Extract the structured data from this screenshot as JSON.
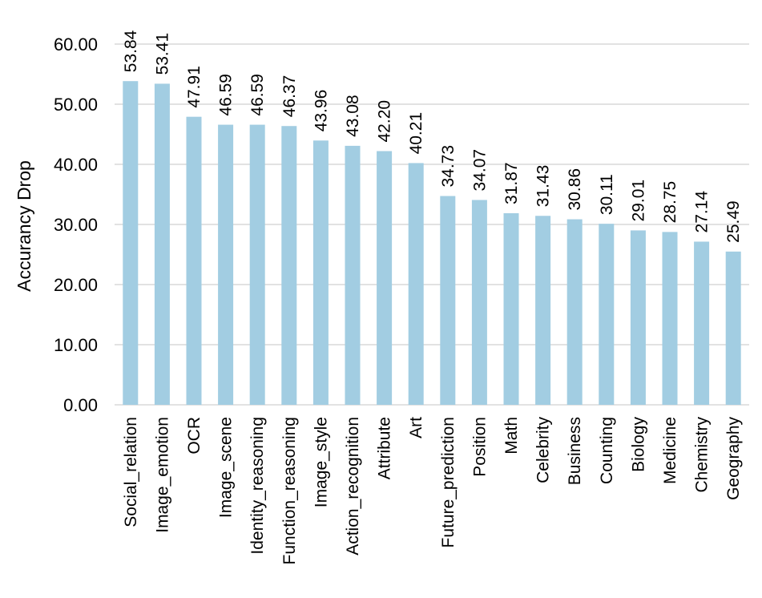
{
  "chart_data": {
    "type": "bar",
    "title": "",
    "xlabel": "",
    "ylabel": "Accurancy Drop",
    "ylim": [
      0,
      60
    ],
    "yticks": [
      "0.00",
      "10.00",
      "20.00",
      "30.00",
      "40.00",
      "50.00",
      "60.00"
    ],
    "grid": true,
    "legend": "none",
    "bar_color": "#a2cde2",
    "grid_color": "#d9d9d9",
    "categories": [
      "Social_relation",
      "Image_emotion",
      "OCR",
      "Image_scene",
      "Identity_reasoning",
      "Function_reasoning",
      "Image_style",
      "Action_recognition",
      "Attribute",
      "Art",
      "Future_prediction",
      "Position",
      "Math",
      "Celebrity",
      "Business",
      "Counting",
      "Biology",
      "Medicine",
      "Chemistry",
      "Geography"
    ],
    "values": [
      53.84,
      53.41,
      47.91,
      46.59,
      46.59,
      46.37,
      43.96,
      43.08,
      42.2,
      40.21,
      34.73,
      34.07,
      31.87,
      31.43,
      30.86,
      30.11,
      29.01,
      28.75,
      27.14,
      25.49
    ],
    "value_labels": [
      "53.84",
      "53.41",
      "47.91",
      "46.59",
      "46.59",
      "46.37",
      "43.96",
      "43.08",
      "42.20",
      "40.21",
      "34.73",
      "34.07",
      "31.87",
      "31.43",
      "30.86",
      "30.11",
      "29.01",
      "28.75",
      "27.14",
      "25.49"
    ]
  }
}
